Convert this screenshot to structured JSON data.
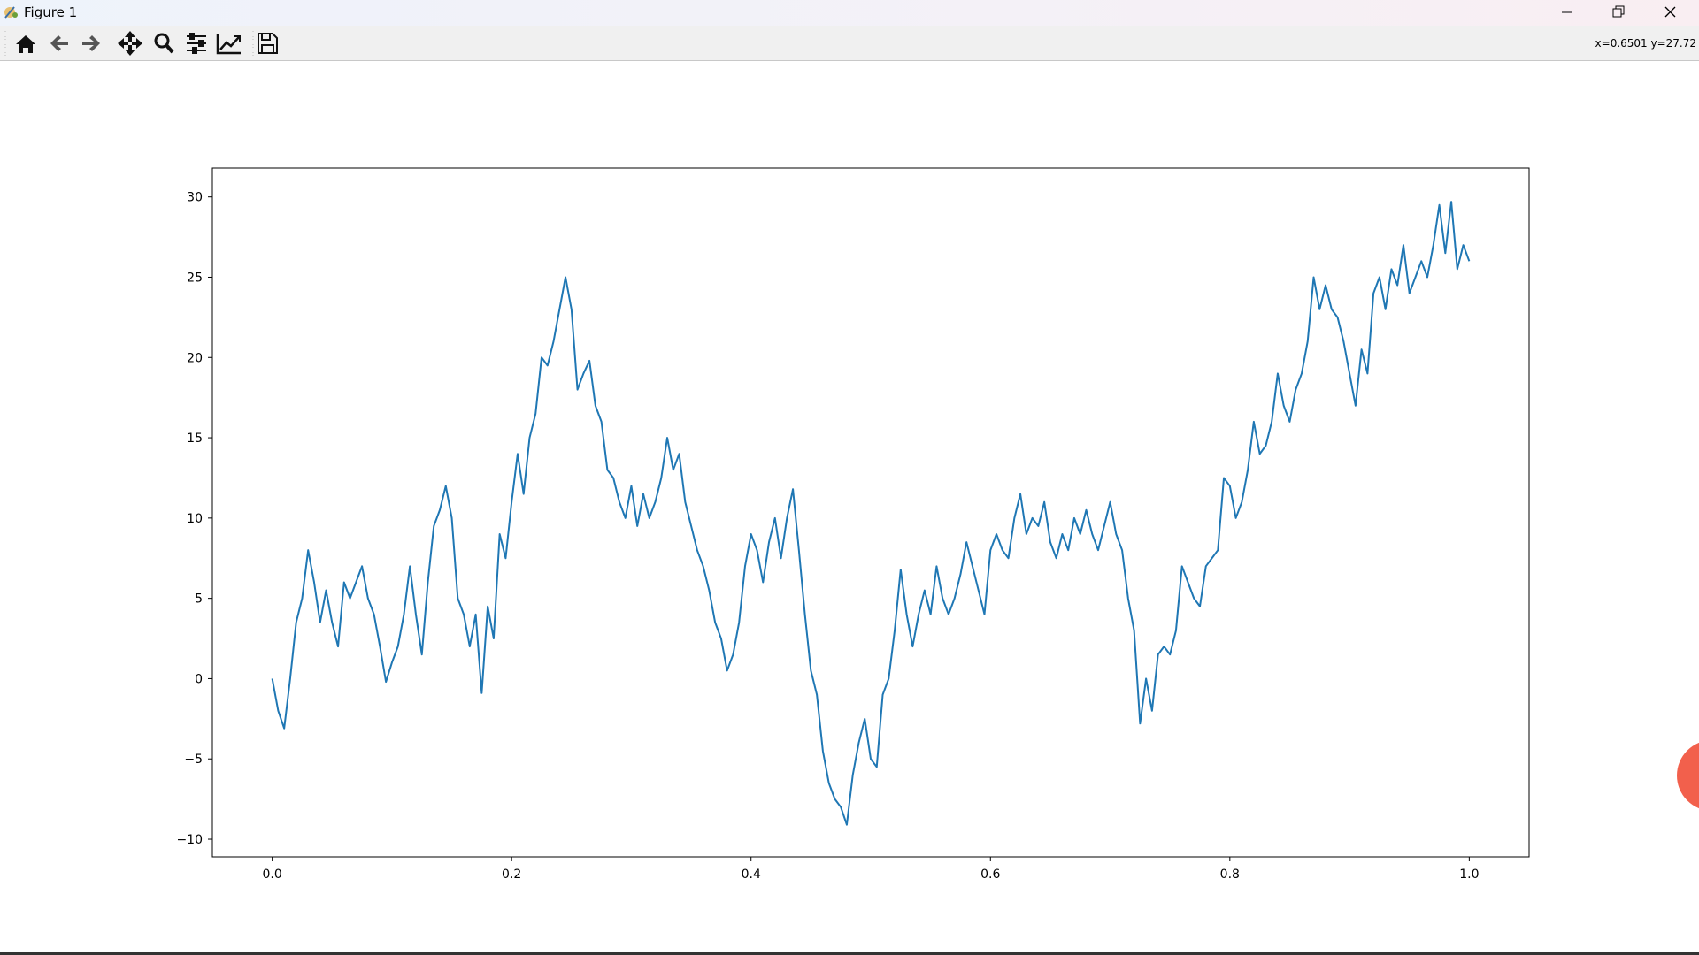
{
  "window": {
    "title": "Figure 1",
    "status": "x=0.6501 y=27.72"
  },
  "chart_data": {
    "type": "line",
    "x": [
      0,
      0.005,
      0.01,
      0.015,
      0.02,
      0.025,
      0.03,
      0.035,
      0.04,
      0.045,
      0.05,
      0.055,
      0.06,
      0.065,
      0.07,
      0.075,
      0.08,
      0.085,
      0.09,
      0.095,
      0.1,
      0.105,
      0.11,
      0.115,
      0.12,
      0.125,
      0.13,
      0.135,
      0.14,
      0.145,
      0.15,
      0.155,
      0.16,
      0.165,
      0.17,
      0.175,
      0.18,
      0.185,
      0.19,
      0.195,
      0.2,
      0.205,
      0.21,
      0.215,
      0.22,
      0.225,
      0.23,
      0.235,
      0.24,
      0.245,
      0.25,
      0.255,
      0.26,
      0.265,
      0.27,
      0.275,
      0.28,
      0.285,
      0.29,
      0.295,
      0.3,
      0.305,
      0.31,
      0.315,
      0.32,
      0.325,
      0.33,
      0.335,
      0.34,
      0.345,
      0.35,
      0.355,
      0.36,
      0.365,
      0.37,
      0.375,
      0.38,
      0.385,
      0.39,
      0.395,
      0.4,
      0.405,
      0.41,
      0.415,
      0.42,
      0.425,
      0.43,
      0.435,
      0.44,
      0.445,
      0.45,
      0.455,
      0.46,
      0.465,
      0.47,
      0.475,
      0.48,
      0.485,
      0.49,
      0.495,
      0.5,
      0.505,
      0.51,
      0.515,
      0.52,
      0.525,
      0.53,
      0.535,
      0.54,
      0.545,
      0.55,
      0.555,
      0.56,
      0.565,
      0.57,
      0.575,
      0.58,
      0.585,
      0.59,
      0.595,
      0.6,
      0.605,
      0.61,
      0.615,
      0.62,
      0.625,
      0.63,
      0.635,
      0.64,
      0.645,
      0.65,
      0.655,
      0.66,
      0.665,
      0.67,
      0.675,
      0.68,
      0.685,
      0.69,
      0.695,
      0.7,
      0.705,
      0.71,
      0.715,
      0.72,
      0.725,
      0.73,
      0.735,
      0.74,
      0.745,
      0.75,
      0.755,
      0.76,
      0.765,
      0.77,
      0.775,
      0.78,
      0.785,
      0.79,
      0.795,
      0.8,
      0.805,
      0.81,
      0.815,
      0.82,
      0.825,
      0.83,
      0.835,
      0.84,
      0.845,
      0.85,
      0.855,
      0.86,
      0.865,
      0.87,
      0.875,
      0.88,
      0.885,
      0.89,
      0.895,
      0.9,
      0.905,
      0.91,
      0.915,
      0.92,
      0.925,
      0.93,
      0.935,
      0.94,
      0.945,
      0.95,
      0.955,
      0.96,
      0.965,
      0.97,
      0.975,
      0.98,
      0.985,
      0.99,
      0.995,
      1.0
    ],
    "values": [
      0,
      -2,
      -3.1,
      0,
      3.5,
      5,
      8,
      6,
      3.5,
      5.5,
      3.5,
      2,
      6,
      5,
      6,
      7,
      5,
      4,
      2,
      -0.2,
      1,
      2,
      4,
      7,
      4,
      1.5,
      6,
      9.5,
      10.5,
      12,
      10,
      5,
      4,
      2,
      4,
      -0.9,
      4.5,
      2.5,
      9,
      7.5,
      11,
      14,
      11.5,
      15,
      16.5,
      20,
      19.5,
      21,
      23,
      25,
      23,
      18,
      19,
      19.8,
      17,
      16,
      13,
      12.5,
      11,
      10,
      12,
      9.5,
      11.5,
      10,
      11,
      12.5,
      15,
      13,
      14,
      11,
      9.5,
      8,
      7,
      5.5,
      3.5,
      2.5,
      0.5,
      1.5,
      3.5,
      7,
      9,
      8,
      6,
      8.5,
      10,
      7.5,
      10,
      11.8,
      8,
      4,
      0.5,
      -1,
      -4.5,
      -6.5,
      -7.5,
      -8,
      -9.1,
      -6,
      -4,
      -2.5,
      -5,
      -5.5,
      -1,
      0,
      3,
      6.8,
      4,
      2,
      4,
      5.5,
      4,
      7,
      5,
      4,
      5,
      6.5,
      8.5,
      7,
      5.5,
      4,
      8,
      9,
      8,
      7.5,
      10,
      11.5,
      9,
      10,
      9.5,
      11,
      8.5,
      7.5,
      9,
      8,
      10,
      9,
      10.5,
      9,
      8,
      9.5,
      11,
      9,
      8,
      5,
      3,
      -2.8,
      0,
      -2,
      1.5,
      2,
      1.5,
      3,
      7,
      6,
      5,
      4.5,
      7,
      7.5,
      8,
      12.5,
      12,
      10,
      11,
      13,
      16,
      14,
      14.5,
      16,
      19,
      17,
      16,
      18,
      19,
      21,
      25,
      23,
      24.5,
      23,
      22.5,
      21,
      19,
      17,
      20.5,
      19,
      24,
      25,
      23,
      25.5,
      24.5,
      27,
      24,
      25,
      26,
      25,
      27,
      29.5,
      26.5,
      29.7,
      25.5,
      27,
      26
    ],
    "color": "#1f77b4",
    "xlim": [
      -0.05,
      1.05
    ],
    "ylim": [
      -11.1,
      31.8
    ],
    "xticks": [
      {
        "value": 0,
        "label": "0.0"
      },
      0.2,
      0.4,
      0.6,
      0.8,
      {
        "value": 1,
        "label": "1.0"
      }
    ],
    "yticks": [
      {
        "value": -10,
        "label": "−10"
      },
      {
        "value": -5,
        "label": "−5"
      },
      0,
      5,
      10,
      15,
      20,
      25,
      30
    ],
    "grid": false
  }
}
